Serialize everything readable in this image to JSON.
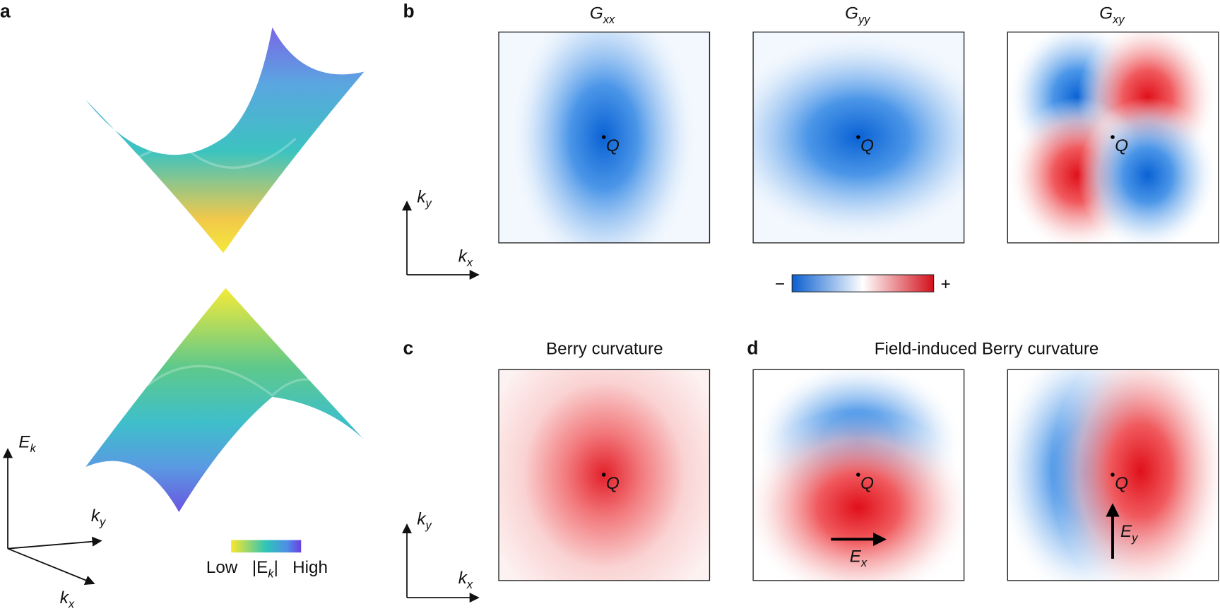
{
  "panel_labels": [
    "a",
    "b",
    "c",
    "d"
  ],
  "panel_a": {
    "axes": {
      "energy": {
        "main": "E",
        "sub": "k"
      },
      "ky": {
        "main": "k",
        "sub": "y"
      },
      "kx": {
        "main": "k",
        "sub": "x"
      }
    },
    "colorbar": {
      "low": "Low",
      "mid": {
        "pre": "|E",
        "sub": "k",
        "post": "|"
      },
      "high": "High"
    }
  },
  "panel_b": {
    "maps": [
      {
        "title": {
          "main": "G",
          "sub": "xx"
        },
        "point": "Q"
      },
      {
        "title": {
          "main": "G",
          "sub": "yy"
        },
        "point": "Q"
      },
      {
        "title": {
          "main": "G",
          "sub": "xy"
        },
        "point": "Q"
      }
    ],
    "axes": {
      "ky": {
        "main": "k",
        "sub": "y"
      },
      "kx": {
        "main": "k",
        "sub": "x"
      }
    },
    "colorbar": {
      "minus": "−",
      "plus": "+"
    }
  },
  "panel_c": {
    "title": "Berry curvature",
    "point": "Q",
    "axes": {
      "ky": {
        "main": "k",
        "sub": "y"
      },
      "kx": {
        "main": "k",
        "sub": "x"
      }
    }
  },
  "panel_d": {
    "title": "Field-induced Berry curvature",
    "maps": [
      {
        "point": "Q",
        "field": {
          "main": "E",
          "sub": "x"
        }
      },
      {
        "point": "Q",
        "field": {
          "main": "E",
          "sub": "y"
        }
      }
    ]
  }
}
